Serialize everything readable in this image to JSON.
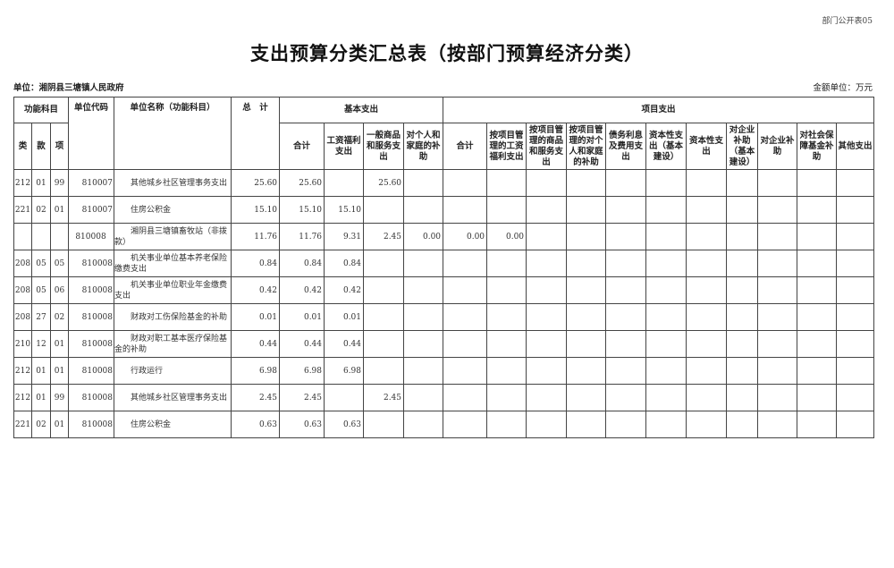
{
  "form_no": "部门公开表05",
  "title": "支出预算分类汇总表（按部门预算经济分类）",
  "unit": "单位：湘阴县三塘镇人民政府",
  "money_unit": "金额单位：万元",
  "header": {
    "func_subject": "功能科目",
    "lei": "类",
    "kuan": "款",
    "xiang": "项",
    "unit_code": "单位代码",
    "unit_name": "单位名称（功能科目）",
    "total": "总　计",
    "basic": "基本支出",
    "project": "项目支出",
    "basic_cols": [
      "合计",
      "工资福利支出",
      "一般商品和服务支出",
      "对个人和家庭的补助"
    ],
    "project_cols": [
      "合计",
      "按项目管理的工资福利支出",
      "按项目管理的商品和服务支出",
      "按项目管理的对个人和家庭的补助",
      "债务利息及费用支出",
      "资本性支出（基本建设）",
      "资本性支出",
      "对企业补助（基本建设）",
      "对企业补助",
      "对社会保障基金补助",
      "其他支出"
    ]
  },
  "rows": [
    {
      "lei": "212",
      "kuan": "01",
      "xiang": "99",
      "code": "810007",
      "name": "其他城乡社区管理事务支出",
      "values": [
        "25.60",
        "25.60",
        "",
        "25.60",
        "",
        "",
        "",
        "",
        "",
        "",
        "",
        "",
        "",
        "",
        "",
        ""
      ]
    },
    {
      "lei": "221",
      "kuan": "02",
      "xiang": "01",
      "code": "810007",
      "name": "住房公积金",
      "values": [
        "15.10",
        "15.10",
        "15.10",
        "",
        "",
        "",
        "",
        "",
        "",
        "",
        "",
        "",
        "",
        "",
        "",
        ""
      ]
    },
    {
      "lei": "",
      "kuan": "",
      "xiang": "",
      "code": "810008",
      "name": "湘阴县三塘镇畜牧站（非拨款）",
      "values": [
        "11.76",
        "11.76",
        "9.31",
        "2.45",
        "0.00",
        "0.00",
        "0.00",
        "",
        "",
        "",
        "",
        "",
        "",
        "",
        "",
        ""
      ]
    },
    {
      "lei": "208",
      "kuan": "05",
      "xiang": "05",
      "code": "810008",
      "name": "机关事业单位基本养老保险缴费支出",
      "values": [
        "0.84",
        "0.84",
        "0.84",
        "",
        "",
        "",
        "",
        "",
        "",
        "",
        "",
        "",
        "",
        "",
        "",
        ""
      ]
    },
    {
      "lei": "208",
      "kuan": "05",
      "xiang": "06",
      "code": "810008",
      "name": "机关事业单位职业年金缴费支出",
      "values": [
        "0.42",
        "0.42",
        "0.42",
        "",
        "",
        "",
        "",
        "",
        "",
        "",
        "",
        "",
        "",
        "",
        "",
        ""
      ]
    },
    {
      "lei": "208",
      "kuan": "27",
      "xiang": "02",
      "code": "810008",
      "name": "财政对工伤保险基金的补助",
      "values": [
        "0.01",
        "0.01",
        "0.01",
        "",
        "",
        "",
        "",
        "",
        "",
        "",
        "",
        "",
        "",
        "",
        "",
        ""
      ]
    },
    {
      "lei": "210",
      "kuan": "12",
      "xiang": "01",
      "code": "810008",
      "name": "财政对职工基本医疗保险基金的补助",
      "values": [
        "0.44",
        "0.44",
        "0.44",
        "",
        "",
        "",
        "",
        "",
        "",
        "",
        "",
        "",
        "",
        "",
        "",
        ""
      ]
    },
    {
      "lei": "212",
      "kuan": "01",
      "xiang": "01",
      "code": "810008",
      "name": "行政运行",
      "values": [
        "6.98",
        "6.98",
        "6.98",
        "",
        "",
        "",
        "",
        "",
        "",
        "",
        "",
        "",
        "",
        "",
        "",
        ""
      ]
    },
    {
      "lei": "212",
      "kuan": "01",
      "xiang": "99",
      "code": "810008",
      "name": "其他城乡社区管理事务支出",
      "values": [
        "2.45",
        "2.45",
        "",
        "2.45",
        "",
        "",
        "",
        "",
        "",
        "",
        "",
        "",
        "",
        "",
        "",
        ""
      ]
    },
    {
      "lei": "221",
      "kuan": "02",
      "xiang": "01",
      "code": "810008",
      "name": "住房公积金",
      "values": [
        "0.63",
        "0.63",
        "0.63",
        "",
        "",
        "",
        "",
        "",
        "",
        "",
        "",
        "",
        "",
        "",
        "",
        ""
      ]
    }
  ]
}
